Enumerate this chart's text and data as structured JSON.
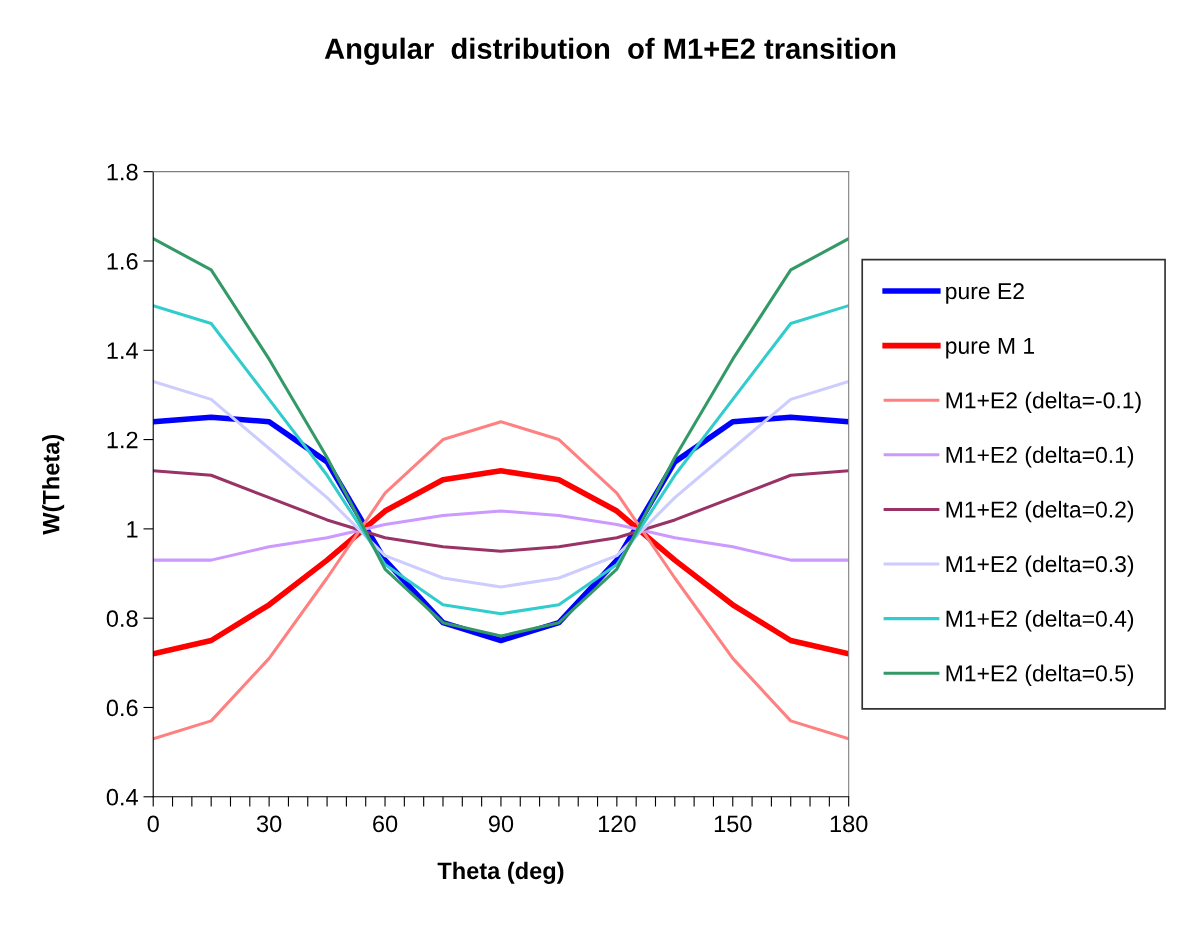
{
  "chart_data": {
    "type": "line",
    "title": "Angular  distribution  of M1+E2 transition",
    "xlabel": "Theta (deg)",
    "ylabel": "W(Theta)",
    "x": [
      0,
      15,
      30,
      45,
      60,
      75,
      90,
      105,
      120,
      135,
      150,
      165,
      180
    ],
    "series": [
      {
        "name": "pure E2",
        "color": "#0000ff",
        "values": [
          1.24,
          1.25,
          1.24,
          1.15,
          0.93,
          0.79,
          0.75,
          0.79,
          0.93,
          1.15,
          1.24,
          1.25,
          1.24
        ]
      },
      {
        "name": "pure M 1",
        "color": "#ff0000",
        "values": [
          0.72,
          0.75,
          0.83,
          0.93,
          1.04,
          1.11,
          1.13,
          1.11,
          1.04,
          0.93,
          0.83,
          0.75,
          0.72
        ]
      },
      {
        "name": "M1+E2 (delta=-0.1)",
        "color": "#ff8080",
        "values": [
          0.53,
          0.57,
          0.71,
          0.89,
          1.08,
          1.2,
          1.24,
          1.2,
          1.08,
          0.89,
          0.71,
          0.57,
          0.53
        ]
      },
      {
        "name": "M1+E2 (delta=0.1)",
        "color": "#cc99ff",
        "values": [
          0.93,
          0.93,
          0.96,
          0.98,
          1.01,
          1.03,
          1.04,
          1.03,
          1.01,
          0.98,
          0.96,
          0.93,
          0.93
        ]
      },
      {
        "name": "M1+E2 (delta=0.2)",
        "color": "#993366",
        "values": [
          1.13,
          1.12,
          1.07,
          1.02,
          0.98,
          0.96,
          0.95,
          0.96,
          0.98,
          1.02,
          1.07,
          1.12,
          1.13
        ]
      },
      {
        "name": "M1+E2 (delta=0.3)",
        "color": "#ccccff",
        "values": [
          1.33,
          1.29,
          1.18,
          1.07,
          0.94,
          0.89,
          0.87,
          0.89,
          0.94,
          1.07,
          1.18,
          1.29,
          1.33
        ]
      },
      {
        "name": "M1+E2 (delta=0.4)",
        "color": "#33cccc",
        "values": [
          1.5,
          1.46,
          1.29,
          1.12,
          0.92,
          0.83,
          0.81,
          0.83,
          0.92,
          1.12,
          1.29,
          1.46,
          1.5
        ]
      },
      {
        "name": "M1+E2 (delta=0.5)",
        "color": "#339966",
        "values": [
          1.65,
          1.58,
          1.38,
          1.16,
          0.91,
          0.79,
          0.76,
          0.79,
          0.91,
          1.16,
          1.38,
          1.58,
          1.65
        ]
      }
    ],
    "xlim": [
      0,
      180
    ],
    "xticks": [
      0,
      {
        "value": 5,
        "label": null
      },
      {
        "value": 10,
        "label": null
      },
      {
        "value": 15,
        "label": null
      },
      {
        "value": 20,
        "label": null
      },
      {
        "value": 25,
        "label": null
      },
      30,
      {
        "value": 35,
        "label": null
      },
      {
        "value": 40,
        "label": null
      },
      {
        "value": 45,
        "label": null
      },
      {
        "value": 50,
        "label": null
      },
      {
        "value": 55,
        "label": null
      },
      60,
      {
        "value": 65,
        "label": null
      },
      {
        "value": 70,
        "label": null
      },
      {
        "value": 75,
        "label": null
      },
      {
        "value": 80,
        "label": null
      },
      {
        "value": 85,
        "label": null
      },
      90,
      {
        "value": 95,
        "label": null
      },
      {
        "value": 100,
        "label": null
      },
      {
        "value": 105,
        "label": null
      },
      {
        "value": 110,
        "label": null
      },
      {
        "value": 115,
        "label": null
      },
      120,
      {
        "value": 125,
        "label": null
      },
      {
        "value": 130,
        "label": null
      },
      {
        "value": 135,
        "label": null
      },
      {
        "value": 140,
        "label": null
      },
      {
        "value": 145,
        "label": null
      },
      150,
      {
        "value": 155,
        "label": null
      },
      {
        "value": 160,
        "label": null
      },
      {
        "value": 165,
        "label": null
      },
      {
        "value": 170,
        "label": null
      },
      {
        "value": 175,
        "label": null
      },
      180
    ],
    "ylim": [
      0.4,
      1.8
    ],
    "yticks": [
      0.4,
      0.6,
      0.8,
      1,
      1.2,
      1.4,
      1.6,
      1.8
    ],
    "grid": false,
    "legend": "right",
    "marker": "none",
    "line_style": "solid"
  }
}
